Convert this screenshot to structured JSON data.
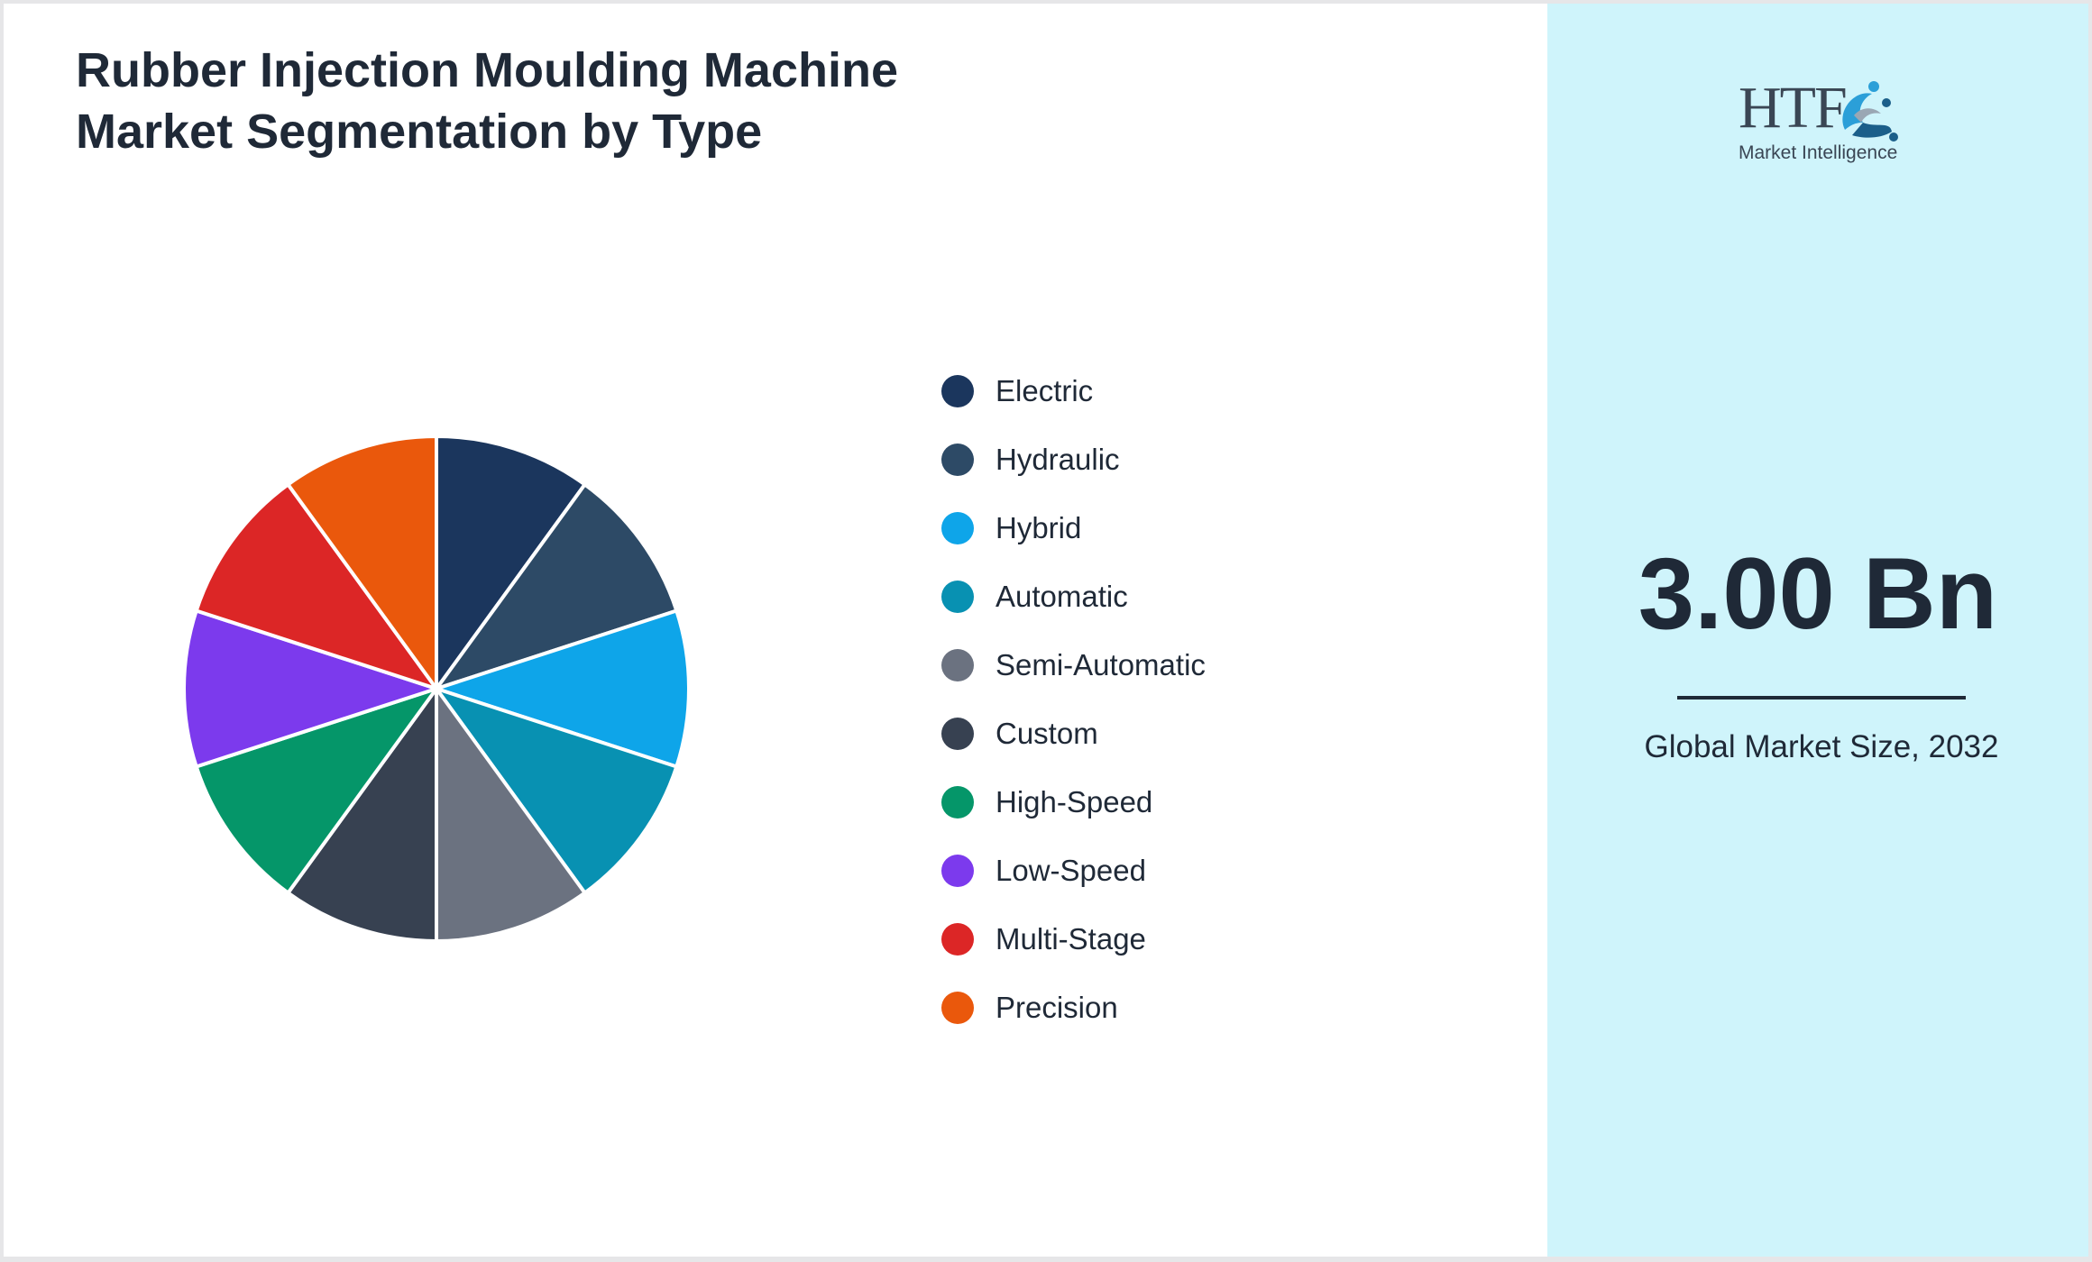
{
  "chart_data": {
    "type": "pie",
    "title": "Rubber Injection Moulding Machine Market Segmentation by Type",
    "categories": [
      "Electric",
      "Hydraulic",
      "Hybrid",
      "Automatic",
      "Semi-Automatic",
      "Custom",
      "High-Speed",
      "Low-Speed",
      "Multi-Stage",
      "Precision"
    ],
    "values": [
      10,
      10,
      10,
      10,
      10,
      10,
      10,
      10,
      10,
      10
    ],
    "colors": [
      "#1b365d",
      "#2d4a66",
      "#0ea5e9",
      "#0891b2",
      "#6b7280",
      "#374151",
      "#059669",
      "#7c3aed",
      "#dc2626",
      "#ea580c"
    ],
    "legend_position": "right",
    "start_angle": "top",
    "direction": "clockwise"
  },
  "branding": {
    "logo_text": "HTF",
    "logo_subtitle": "Market Intelligence",
    "logo_icon": "htf-swirl-logo-icon"
  },
  "summary": {
    "value": "3.00 Bn",
    "caption": "Global Market Size, 2032"
  },
  "colors": {
    "panel_background": "#cff4fb",
    "text": "#1f2937",
    "slice_border": "#ffffff"
  }
}
